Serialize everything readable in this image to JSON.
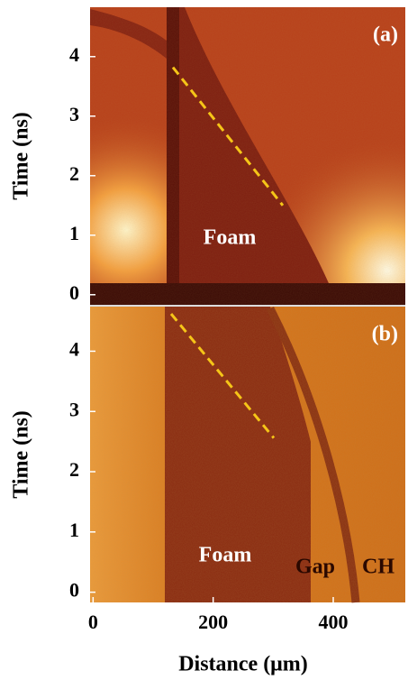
{
  "chart_data": [
    {
      "type": "streak",
      "title": "(a)",
      "ylabel": "Time (ns)",
      "xlim": [
        -5,
        520
      ],
      "ylim": [
        -0.17,
        4.83
      ],
      "yticks": [
        0,
        1,
        2,
        3,
        4
      ],
      "annotations": [
        "Foam"
      ],
      "line": {
        "x": [
          133,
          316
        ],
        "y": [
          3.82,
          1.5
        ],
        "color": "#f5c518"
      }
    },
    {
      "type": "streak",
      "title": "(b)",
      "ylabel": "Time (ns)",
      "xlabel": "Distance (μm)",
      "xlim": [
        -5,
        520
      ],
      "ylim": [
        -0.17,
        4.74
      ],
      "yticks": [
        0,
        1,
        2,
        3,
        4
      ],
      "xticks": [
        0,
        200,
        400
      ],
      "annotations": [
        "Foam",
        "Gap",
        "CH"
      ],
      "line": {
        "x": [
          130,
          301
        ],
        "y": [
          4.62,
          2.56
        ],
        "color": "#f5c518"
      }
    }
  ]
}
